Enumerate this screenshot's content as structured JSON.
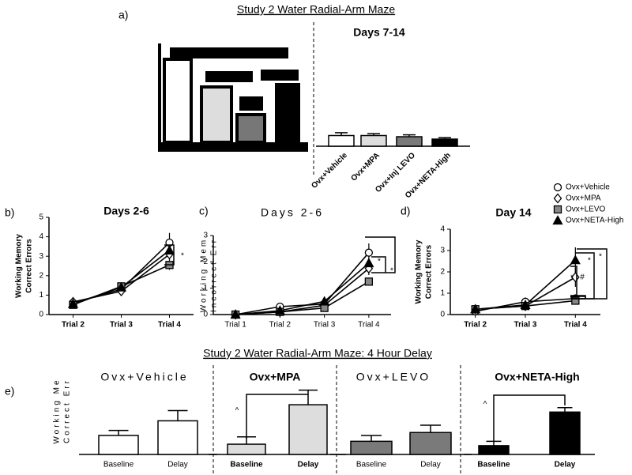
{
  "figure_title": "Study 2 Water Radial-Arm Maze",
  "delay_title": "Study 2 Water Radial-Arm Maze: 4 Hour Delay",
  "panel_labels": [
    "a)",
    "b)",
    "c)",
    "d)",
    "e)"
  ],
  "chart_data": [
    {
      "type": "bar",
      "title": "Days 7-14",
      "categories": [
        "Ovx+Vehicle",
        "Ovx+MPA",
        "Ovx+Inj LEVO",
        "Ovx+NETA-High"
      ],
      "values": [
        0.45,
        0.45,
        0.4,
        0.3
      ],
      "errors": [
        0.12,
        0.08,
        0.08,
        0.06
      ],
      "colors": [
        "#ffffff",
        "#dddddd",
        "#7a7a7a",
        "#000000"
      ]
    },
    {
      "type": "line",
      "title": "Days 2-6",
      "ylabel": [
        "Working Memory",
        "Correct Errors"
      ],
      "categories": [
        "Trial 2",
        "Trial 3",
        "Trial 4"
      ],
      "ylim": [
        0,
        5
      ],
      "yticks": [
        0,
        1,
        2,
        3,
        4,
        5
      ],
      "series": [
        {
          "name": "Ovx+Vehicle",
          "marker": "circle",
          "color": "#ffffff",
          "values": [
            0.6,
            1.3,
            3.7
          ],
          "errors": [
            0.1,
            0.1,
            0.5
          ]
        },
        {
          "name": "Ovx+MPA",
          "marker": "diamond",
          "color": "#ffffff",
          "values": [
            0.65,
            1.2,
            3.1
          ],
          "errors": [
            0.1,
            0.1,
            0.3
          ]
        },
        {
          "name": "Ovx+LEVO",
          "marker": "square",
          "color": "#888888",
          "values": [
            0.5,
            1.45,
            2.55
          ],
          "errors": [
            0.1,
            0.1,
            0.25
          ]
        },
        {
          "name": "Ovx+NETA-High",
          "marker": "triangle",
          "color": "#000000",
          "values": [
            0.55,
            1.4,
            3.3
          ],
          "errors": [
            0.1,
            0.1,
            0.3
          ]
        }
      ],
      "annotations": [
        "*"
      ]
    },
    {
      "type": "line",
      "title": "Days 2-6",
      "ylabel": [
        "Working Mem",
        "Incorrect Err"
      ],
      "categories": [
        "Trial 1",
        "Trial 2",
        "Trial 3",
        "Trial 4"
      ],
      "ylim": [
        0,
        3
      ],
      "yticks": [
        0,
        1,
        2,
        3
      ],
      "series": [
        {
          "name": "Ovx+Vehicle",
          "marker": "circle",
          "color": "#ffffff",
          "values": [
            0,
            0.3,
            0.4,
            2.35
          ],
          "errors": [
            0.03,
            0.1,
            0.1,
            0.35
          ]
        },
        {
          "name": "Ovx+MPA",
          "marker": "diamond",
          "color": "#ffffff",
          "values": [
            0,
            0.1,
            0.35,
            1.75
          ],
          "errors": [
            0.03,
            0.08,
            0.1,
            0.25
          ]
        },
        {
          "name": "Ovx+LEVO",
          "marker": "square",
          "color": "#888888",
          "values": [
            0,
            0.1,
            0.25,
            1.25
          ],
          "errors": [
            0.03,
            0.05,
            0.08,
            0.15
          ]
        },
        {
          "name": "Ovx+NETA-High",
          "marker": "triangle",
          "color": "#000000",
          "values": [
            0,
            0.15,
            0.5,
            1.95
          ],
          "errors": [
            0.03,
            0.08,
            0.12,
            0.2
          ]
        }
      ],
      "annotations": [
        "*",
        "*"
      ]
    },
    {
      "type": "line",
      "title": "Day 14",
      "ylabel": [
        "Working Memory",
        "Correct Errors"
      ],
      "categories": [
        "Trial 2",
        "Trial 3",
        "Trial 4"
      ],
      "ylim": [
        0,
        4
      ],
      "yticks": [
        0,
        1,
        2,
        3,
        4
      ],
      "series": [
        {
          "name": "Ovx+Vehicle",
          "marker": "circle",
          "color": "#ffffff",
          "values": [
            0.15,
            0.6,
            0.75
          ],
          "errors": [
            0.1,
            0.2,
            0.2
          ]
        },
        {
          "name": "Ovx+MPA",
          "marker": "diamond",
          "color": "#ffffff",
          "values": [
            0.25,
            0.4,
            1.75
          ],
          "errors": [
            0.1,
            0.15,
            0.45
          ]
        },
        {
          "name": "Ovx+LEVO",
          "marker": "square",
          "color": "#888888",
          "values": [
            0.25,
            0.4,
            0.65
          ],
          "errors": [
            0.1,
            0.1,
            0.15
          ]
        },
        {
          "name": "Ovx+NETA-High",
          "marker": "triangle",
          "color": "#000000",
          "values": [
            0.25,
            0.45,
            2.55
          ],
          "errors": [
            0.1,
            0.15,
            0.6
          ]
        }
      ],
      "annotations": [
        "*",
        "#",
        "*",
        "*"
      ]
    },
    {
      "type": "bar",
      "title": "Ovx+Vehicle",
      "ylabel": [
        "Working Me",
        "Correct Err"
      ],
      "categories": [
        "Baseline",
        "Delay"
      ],
      "values": [
        0.65,
        1.15
      ],
      "errors": [
        0.17,
        0.35
      ],
      "colors": [
        "#ffffff",
        "#ffffff"
      ]
    },
    {
      "type": "bar",
      "title": "Ovx+MPA",
      "categories": [
        "Baseline",
        "Delay"
      ],
      "values": [
        0.35,
        1.7
      ],
      "errors": [
        0.25,
        0.5
      ],
      "colors": [
        "#dddddd",
        "#dddddd"
      ],
      "annotations": [
        "^"
      ]
    },
    {
      "type": "bar",
      "title": "Ovx+LEVO",
      "categories": [
        "Baseline",
        "Delay"
      ],
      "values": [
        0.45,
        0.75
      ],
      "errors": [
        0.2,
        0.25
      ],
      "colors": [
        "#7a7a7a",
        "#7a7a7a"
      ]
    },
    {
      "type": "bar",
      "title": "Ovx+NETA-High",
      "categories": [
        "Baseline",
        "Delay"
      ],
      "values": [
        0.3,
        1.45
      ],
      "errors": [
        0.15,
        0.15
      ],
      "colors": [
        "#000000",
        "#000000"
      ],
      "annotations": [
        "^"
      ]
    }
  ]
}
